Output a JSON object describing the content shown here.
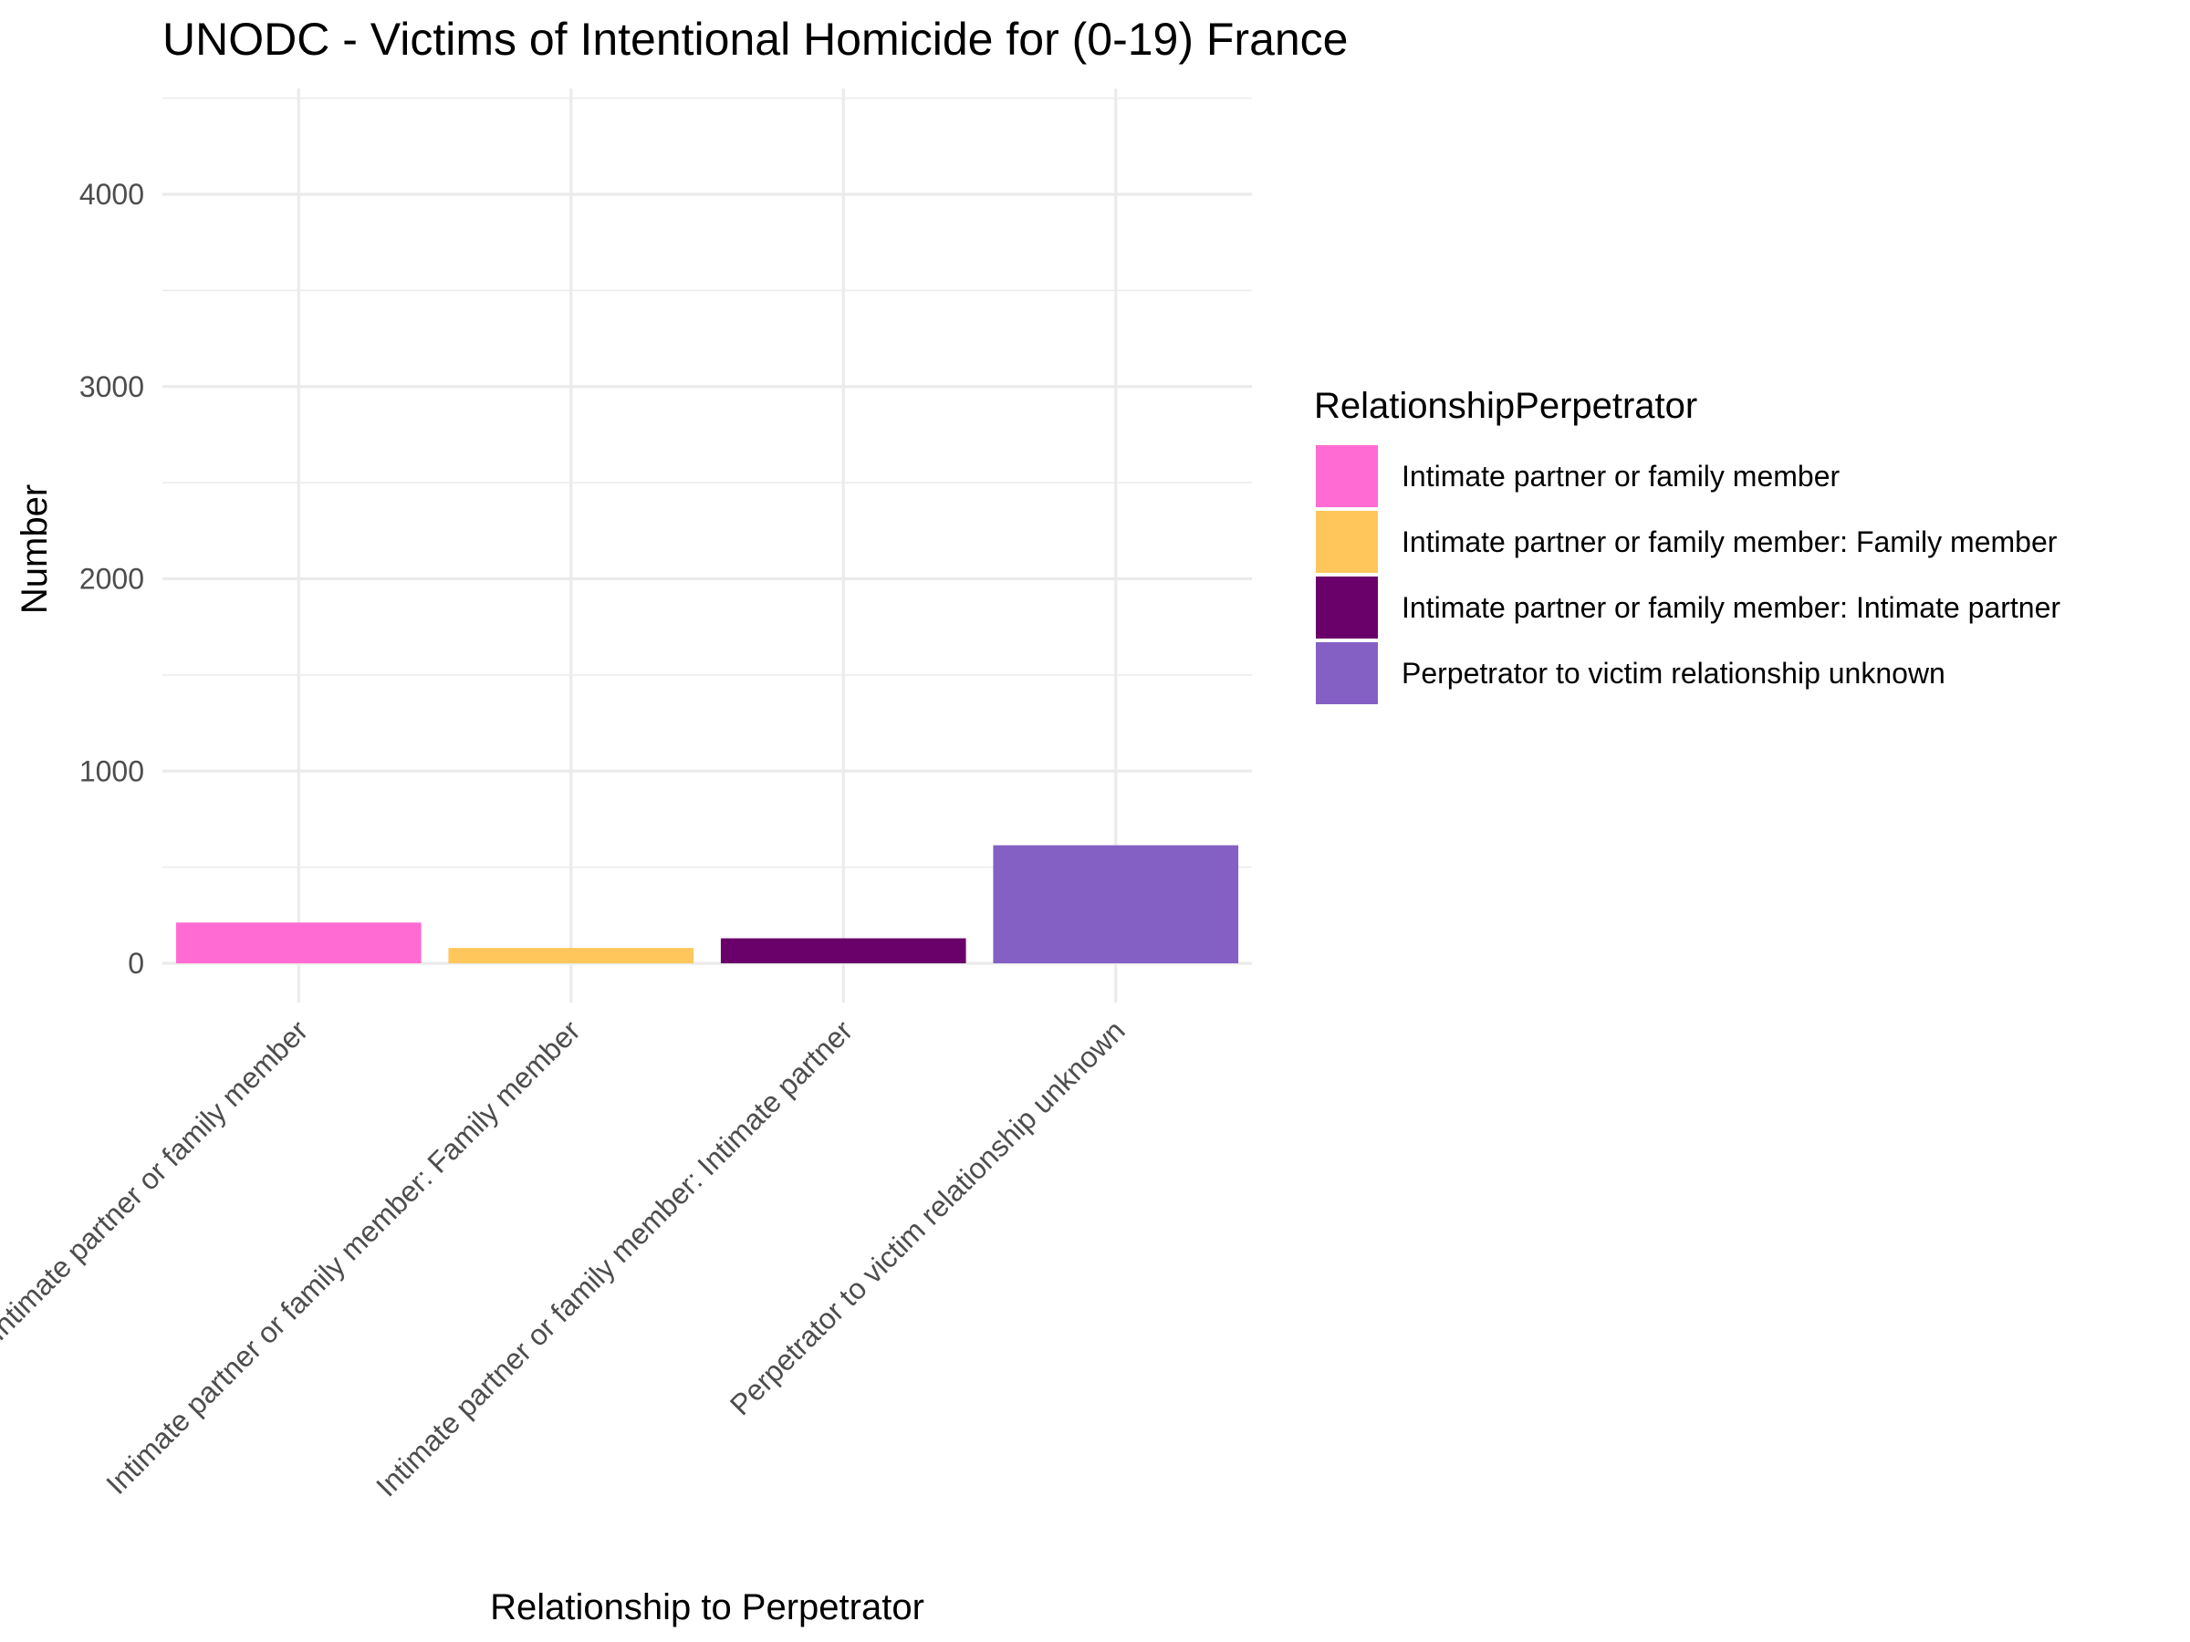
{
  "chart_data": {
    "type": "bar",
    "title": "UNODC - Victims of Intentional Homicide for (0-19) France",
    "xlabel": "Relationship to Perpetrator",
    "ylabel": "Number",
    "categories": [
      "Intimate partner or family member",
      "Intimate partner or family member: Family member",
      "Intimate partner or family member: Intimate partner",
      "Perpetrator to victim relationship unknown"
    ],
    "values": [
      212,
      80,
      130,
      614
    ],
    "colors": [
      "#ff6bd3",
      "#ffc65c",
      "#6a006a",
      "#8560c4"
    ],
    "ylim": [
      0,
      4500
    ],
    "yticks": [
      0,
      1000,
      2000,
      3000,
      4000
    ],
    "ytick_labels": [
      "0",
      "1000",
      "2000",
      "3000",
      "4000"
    ],
    "grid": true,
    "legend": {
      "title": "RelationshipPerpetrator",
      "position": "right",
      "entries": [
        "Intimate partner or family member",
        "Intimate partner or family member: Family member",
        "Intimate partner or family member: Intimate partner",
        "Perpetrator to victim relationship unknown"
      ]
    }
  }
}
